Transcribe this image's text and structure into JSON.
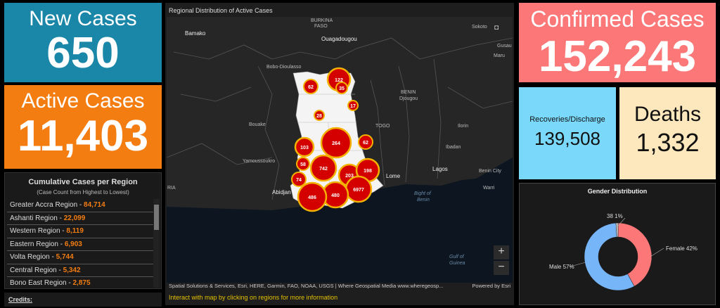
{
  "new_cases": {
    "title": "New Cases",
    "value": "650"
  },
  "active_cases": {
    "title": "Active Cases",
    "value": "11,403"
  },
  "regions_panel": {
    "title": "Cumulative Cases per Region",
    "subtitle": "(Case Count from Highest to Lowest)",
    "items": [
      {
        "name": "Greater Accra Region - ",
        "value": "84,714"
      },
      {
        "name": "Ashanti Region - ",
        "value": "22,099"
      },
      {
        "name": "Western Region - ",
        "value": "8,119"
      },
      {
        "name": "Eastern Region - ",
        "value": "6,903"
      },
      {
        "name": "Volta Region - ",
        "value": "5,744"
      },
      {
        "name": "Central Region - ",
        "value": "5,342"
      },
      {
        "name": "Bono East Region - ",
        "value": "2,875"
      }
    ]
  },
  "credits": {
    "label": "Credits:"
  },
  "map": {
    "title": "Regional Distribution of Active Cases",
    "labels": {
      "burkina": "BURKINA",
      "faso": "FASO",
      "ouagadougou": "Ouagadougou",
      "bamako": "Bamako",
      "bobo": "Bobo-Dioulasso",
      "benin": "BENIN",
      "djougou": "Djougou",
      "togo": "TOGO",
      "ilorin": "Ilorin",
      "ibadan": "Ibadan",
      "lagos": "Lagos",
      "benin_city": "Benin City",
      "warri": "Warri",
      "bouake": "Bouake",
      "yamoussoukro": "Yamoussoukro",
      "abidjan": "Abidjan",
      "lome": "Lome",
      "bight1": "Bight of",
      "bight2": "Benin",
      "gulf1": "Gulf of",
      "gulf2": "Guinea",
      "sokoto": "Sokoto",
      "maru": "Maru",
      "gusau": "Gusau",
      "kano_chip": "◘",
      "ria": "RIA"
    },
    "clusters": [
      "122",
      "62",
      "35",
      "17",
      "28",
      "264",
      "103",
      "62",
      "58",
      "742",
      "203",
      "198",
      "74",
      "6977",
      "480",
      "486"
    ],
    "zoom_in": "+",
    "zoom_out": "−",
    "attribution": "Spatial Solutions & Services, Esri, HERE, Garmin, FAO, NOAA, USGS | Where Geospatial Media www.wheregeosp...",
    "powered": "Powered by Esri",
    "hint": "Interact with map by clicking on regions for more information"
  },
  "confirmed": {
    "title": "Confirmed Cases",
    "value": "152,243"
  },
  "recoveries": {
    "title": "Recoveries/Discharge",
    "value": "139,508"
  },
  "deaths": {
    "title": "Deaths",
    "value": "1,332"
  },
  "gender": {
    "title": "Gender Distribution",
    "label_female": "Female 42%",
    "label_male": "Male 57%",
    "label_other": "38 1%",
    "colors": {
      "female": "#fb7778",
      "male": "#76b6f8",
      "other": "#cccccc"
    }
  },
  "chart_data": {
    "type": "pie",
    "title": "Gender Distribution",
    "categories": [
      "Female",
      "Male",
      "38"
    ],
    "values": [
      42,
      57,
      1
    ]
  },
  "colors": {
    "new_cases": "#1b87a8",
    "active_cases": "#f47d11",
    "confirmed": "#fb7778",
    "recoveries": "#7ad9fb",
    "deaths": "#fde8be",
    "cluster_fill": "#d40000",
    "cluster_ring": "#f3b200"
  }
}
